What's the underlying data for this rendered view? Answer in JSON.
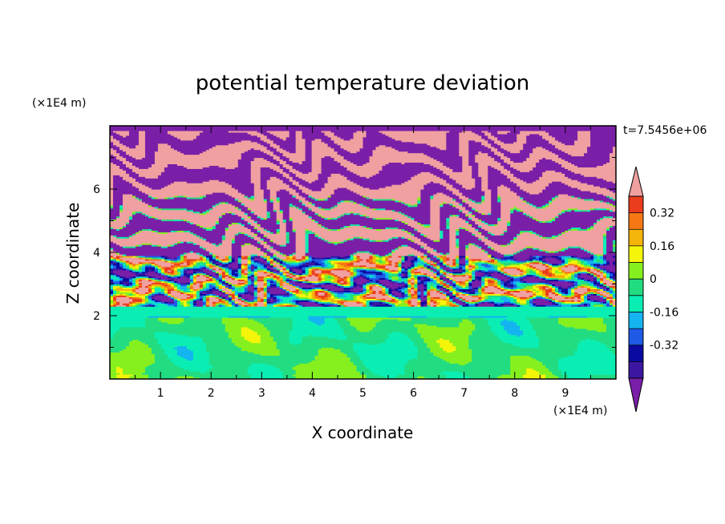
{
  "chart_data": {
    "type": "heatmap",
    "title": "potential temperature deviation",
    "xlabel": "X coordinate",
    "ylabel": "Z coordinate",
    "x_unit": "(×1E4 m)",
    "y_unit": "(×1E4 m)",
    "time_label": "t=7.5456e+06",
    "xlim": [
      0,
      10
    ],
    "ylim": [
      0,
      8
    ],
    "x_ticks": [
      "1",
      "2",
      "3",
      "4",
      "5",
      "6",
      "7",
      "8",
      "9"
    ],
    "y_ticks": [
      "2",
      "4",
      "6"
    ],
    "colorbar": {
      "levels": [
        -0.48,
        -0.4,
        -0.32,
        -0.24,
        -0.16,
        -0.08,
        0,
        0.08,
        0.16,
        0.24,
        0.32,
        0.4,
        0.48
      ],
      "colors": [
        "#7a1fa8",
        "#3c16a0",
        "#0a0aa0",
        "#1e5ae6",
        "#14b4f0",
        "#0aeeb4",
        "#22dc82",
        "#86f01e",
        "#f5f50a",
        "#f5b40a",
        "#f57814",
        "#eb3c1e",
        "#f0a0a0"
      ],
      "tick_labels": [
        "0.32",
        "0.16",
        "0",
        "-0.16",
        "-0.32"
      ],
      "extend": "both"
    },
    "regions": [
      {
        "z_range": [
          0,
          2.3
        ],
        "pattern": "mostly green, light-green patches"
      },
      {
        "z_range": [
          2.3,
          3.9
        ],
        "pattern": "turbulent mixing layer"
      },
      {
        "z_range": [
          3.9,
          8
        ],
        "pattern": "alternating pink/purple layers"
      }
    ],
    "grid": false
  }
}
